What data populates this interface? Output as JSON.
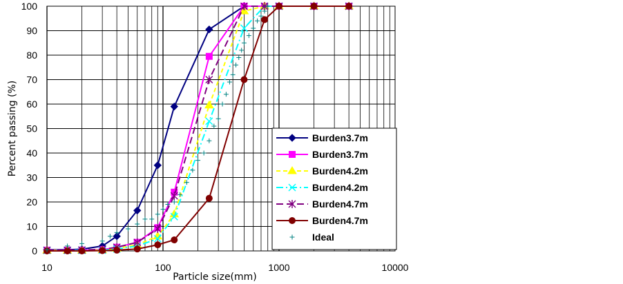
{
  "chart_data": {
    "type": "line",
    "xscale": "log",
    "xlim": [
      10,
      10000
    ],
    "ylim": [
      0,
      100
    ],
    "xlabel": "Particle size(mm)",
    "ylabel": "Percent passing (%)",
    "grid": true,
    "legend_position": "right",
    "x_ticks": [
      "10",
      "100",
      "1000",
      "10000"
    ],
    "y_ticks": [
      "0",
      "10",
      "20",
      "30",
      "40",
      "50",
      "60",
      "70",
      "80",
      "90",
      "100"
    ],
    "series": [
      {
        "name": "Burden3.7m",
        "color": "#000080",
        "dash": "solid",
        "marker": "diamond",
        "x": [
          10,
          15,
          20,
          30,
          40,
          60,
          90,
          125,
          250,
          500,
          750,
          1000,
          2000,
          4000
        ],
        "y": [
          0.5,
          0.5,
          0.7,
          2,
          6,
          16.5,
          35,
          59,
          90.5,
          100,
          100,
          100,
          100,
          100
        ]
      },
      {
        "name": "Burden3.7m",
        "color": "#ff00ff",
        "dash": "solid",
        "marker": "square",
        "x": [
          10,
          15,
          20,
          30,
          40,
          60,
          90,
          125,
          250,
          500,
          750,
          1000,
          2000,
          4000
        ],
        "y": [
          0.3,
          0.3,
          0.3,
          0.5,
          1.5,
          3.5,
          9.5,
          24,
          79.5,
          100,
          100,
          100,
          100,
          100
        ]
      },
      {
        "name": "Burden4.2m",
        "color": "#ffff00",
        "dash": "dashed",
        "marker": "triangle",
        "x": [
          10,
          15,
          20,
          30,
          40,
          60,
          90,
          125,
          250,
          500,
          750,
          1000,
          2000,
          4000
        ],
        "y": [
          0.2,
          0.2,
          0.2,
          0.3,
          1,
          2.5,
          6,
          15,
          59.5,
          98,
          100,
          100,
          100,
          100
        ]
      },
      {
        "name": "Burden4.2m",
        "color": "#00ffff",
        "dash": "dashdot",
        "marker": "x",
        "x": [
          10,
          15,
          20,
          30,
          40,
          60,
          90,
          125,
          250,
          500,
          750,
          1000,
          2000,
          4000
        ],
        "y": [
          0.2,
          0.2,
          0.2,
          0.3,
          0.8,
          2,
          5,
          14,
          53,
          91,
          100,
          100,
          100,
          100
        ]
      },
      {
        "name": "Burden4.7m",
        "color": "#800080",
        "dash": "longdash",
        "marker": "asterisk",
        "x": [
          10,
          15,
          20,
          30,
          40,
          60,
          90,
          125,
          250,
          500,
          750,
          1000,
          2000,
          4000
        ],
        "y": [
          0.3,
          0.3,
          0.4,
          0.6,
          1.5,
          3.5,
          9,
          22.5,
          70,
          100,
          100,
          100,
          100,
          100
        ]
      },
      {
        "name": "Burden4.7m",
        "color": "#800000",
        "dash": "solid",
        "marker": "circle",
        "x": [
          10,
          15,
          20,
          30,
          40,
          60,
          90,
          125,
          250,
          500,
          750,
          1000,
          2000,
          4000
        ],
        "y": [
          0,
          0,
          0,
          0.1,
          0.3,
          0.8,
          2.5,
          4.5,
          21.5,
          70,
          94.5,
          100,
          100,
          100
        ]
      },
      {
        "name": "Ideal",
        "color": "#008080",
        "dash": "none",
        "marker": "plus",
        "x": [
          10,
          15,
          20,
          30,
          35,
          40,
          50,
          60,
          70,
          80,
          90,
          100,
          110,
          125,
          140,
          160,
          180,
          200,
          225,
          250,
          275,
          300,
          325,
          350,
          375,
          400,
          425,
          450,
          475,
          500,
          550,
          600,
          650,
          700,
          750,
          800
        ],
        "y": [
          0.5,
          2,
          3,
          4,
          6,
          7.5,
          9,
          11,
          13,
          13,
          15,
          17,
          19,
          20,
          23,
          28,
          33,
          37,
          40,
          45,
          51,
          54,
          60,
          64,
          69,
          72,
          76,
          79,
          82,
          85,
          88,
          91,
          94,
          96,
          98,
          100
        ]
      }
    ]
  }
}
